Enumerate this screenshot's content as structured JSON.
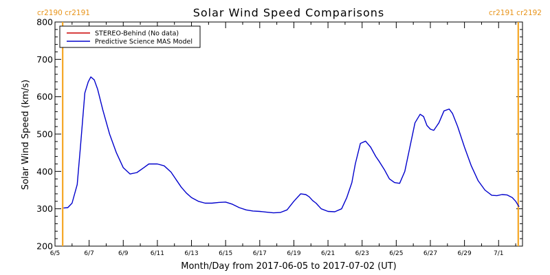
{
  "chart_data": {
    "type": "line",
    "title": "Solar Wind Speed Comparisons",
    "xlabel": "Month/Day from 2017-06-05 to 2017-07-02 (UT)",
    "ylabel": "Solar Wind Speed (km/s)",
    "x_domain_days": [
      0,
      27.4
    ],
    "ylim": [
      200,
      800
    ],
    "y_ticks": [
      200,
      300,
      400,
      500,
      600,
      700,
      800
    ],
    "x_ticks": [
      {
        "label": "6/5",
        "day": 0
      },
      {
        "label": "6/7",
        "day": 2
      },
      {
        "label": "6/9",
        "day": 4
      },
      {
        "label": "6/11",
        "day": 6
      },
      {
        "label": "6/13",
        "day": 8
      },
      {
        "label": "6/15",
        "day": 10
      },
      {
        "label": "6/17",
        "day": 12
      },
      {
        "label": "6/19",
        "day": 14
      },
      {
        "label": "6/21",
        "day": 16
      },
      {
        "label": "6/23",
        "day": 18
      },
      {
        "label": "6/25",
        "day": 20
      },
      {
        "label": "6/27",
        "day": 22
      },
      {
        "label": "6/29",
        "day": 24
      },
      {
        "label": "7/1",
        "day": 26
      }
    ],
    "rotation_markers": [
      {
        "day": 0.45,
        "label": "cr2190 cr2191",
        "anchor": "start"
      },
      {
        "day": 27.15,
        "label": "cr2191 cr2192",
        "anchor": "end"
      }
    ],
    "legend": {
      "placement": "top-left",
      "entries": [
        {
          "label": "STEREO-Behind (No data)",
          "color": "#cc0000"
        },
        {
          "label": "Predictive Science MAS Model",
          "color": "#0000cc"
        }
      ]
    },
    "series": [
      {
        "name": "Predictive Science MAS Model",
        "color": "#0000cc",
        "x": [
          0.5,
          0.75,
          1.0,
          1.3,
          1.5,
          1.75,
          1.95,
          2.1,
          2.3,
          2.5,
          2.8,
          3.2,
          3.6,
          4.0,
          4.4,
          4.8,
          5.2,
          5.5,
          6.0,
          6.4,
          6.8,
          7.1,
          7.4,
          7.7,
          8.0,
          8.4,
          8.8,
          9.2,
          9.6,
          10.0,
          10.4,
          10.8,
          11.2,
          11.6,
          12.0,
          12.4,
          12.8,
          13.2,
          13.6,
          14.0,
          14.4,
          14.7,
          14.9,
          15.1,
          15.3,
          15.6,
          16.0,
          16.4,
          16.8,
          17.1,
          17.4,
          17.6,
          17.9,
          18.2,
          18.5,
          18.8,
          19.0,
          19.3,
          19.6,
          19.9,
          20.2,
          20.5,
          20.8,
          21.1,
          21.4,
          21.6,
          21.8,
          22.0,
          22.2,
          22.5,
          22.8,
          23.1,
          23.3,
          23.6,
          24.0,
          24.4,
          24.8,
          25.2,
          25.6,
          25.9,
          26.2,
          26.5,
          26.8,
          27.0,
          27.2
        ],
        "y": [
          302,
          303,
          315,
          365,
          470,
          610,
          640,
          653,
          645,
          620,
          565,
          500,
          450,
          410,
          393,
          397,
          410,
          420,
          420,
          415,
          398,
          378,
          358,
          342,
          330,
          320,
          315,
          315,
          317,
          318,
          312,
          303,
          297,
          294,
          293,
          291,
          289,
          290,
          297,
          320,
          340,
          338,
          332,
          322,
          315,
          300,
          293,
          292,
          300,
          330,
          370,
          420,
          475,
          481,
          465,
          440,
          427,
          405,
          380,
          370,
          368,
          400,
          465,
          530,
          553,
          547,
          523,
          513,
          510,
          530,
          562,
          567,
          555,
          520,
          465,
          415,
          375,
          350,
          336,
          335,
          338,
          337,
          330,
          320,
          305
        ]
      }
    ]
  }
}
